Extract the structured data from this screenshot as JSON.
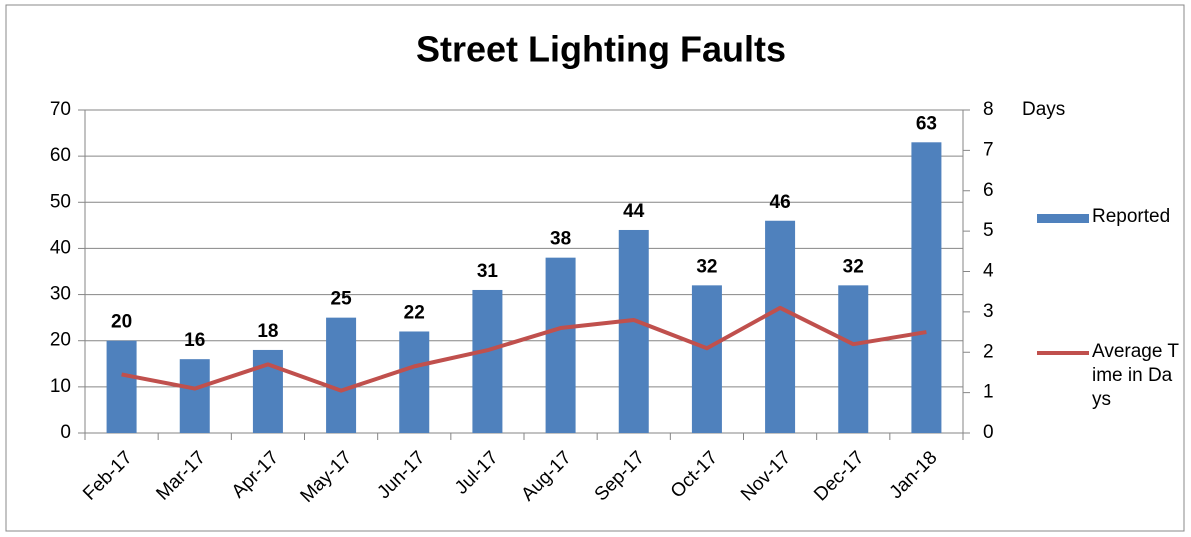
{
  "chart_data": {
    "type": "bar-line",
    "title": "Street Lighting Faults",
    "categories": [
      "Feb-17",
      "Mar-17",
      "Apr-17",
      "May-17",
      "Jun-17",
      "Jul-17",
      "Aug-17",
      "Sep-17",
      "Oct-17",
      "Nov-17",
      "Dec-17",
      "Jan-18"
    ],
    "series": [
      {
        "name": "Reported",
        "type": "bar",
        "color": "#4f81bd",
        "values": [
          20,
          16,
          18,
          25,
          22,
          31,
          38,
          44,
          32,
          46,
          32,
          63
        ]
      },
      {
        "name": "Average Time in Days",
        "type": "line",
        "color": "#c0504d",
        "axis": "y2",
        "values": [
          1.45,
          1.1,
          1.7,
          1.05,
          1.65,
          2.05,
          2.6,
          2.8,
          2.1,
          3.1,
          2.2,
          2.5
        ]
      }
    ],
    "ylim": [
      0,
      70
    ],
    "yticks": [
      0,
      10,
      20,
      30,
      40,
      50,
      60,
      70
    ],
    "y2lim": [
      0,
      8
    ],
    "y2ticks": [
      0,
      1,
      2,
      3,
      4,
      5,
      6,
      7,
      8
    ],
    "y2label": "Days",
    "grid": true,
    "legend": "right"
  }
}
